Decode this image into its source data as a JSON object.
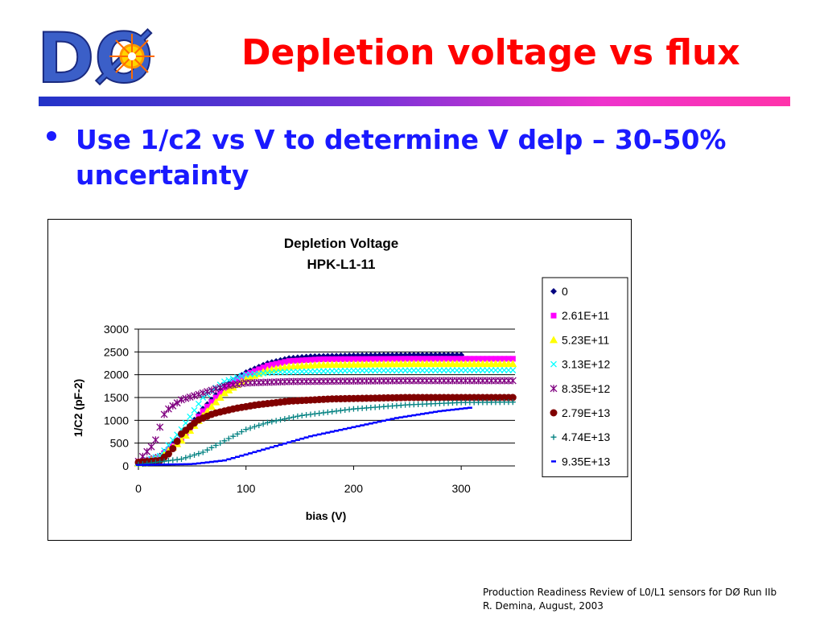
{
  "slide": {
    "title": "Depletion voltage vs flux",
    "bullet": "Use 1/c2 vs V to determine V delp – 30-50% uncertainty",
    "logo_text": "DØ",
    "footer_line1": "Production Readiness Review of L0/L1 sensors for DØ Run IIb",
    "footer_line2": "R. Demina, August, 2003",
    "accent_colors": {
      "title": "#ff0000",
      "bullet": "#1a1aff"
    }
  },
  "chart_data": {
    "type": "scatter",
    "title": "Depletion Voltage",
    "subtitle": "HPK-L1-11",
    "xlabel": "bias (V)",
    "ylabel": "1/C2 (pF-2)",
    "xlim": [
      0,
      350
    ],
    "ylim": [
      0,
      3000
    ],
    "xticks": [
      0,
      100,
      200,
      300
    ],
    "yticks": [
      0,
      500,
      1000,
      1500,
      2000,
      2500,
      3000
    ],
    "grid": "horizontal",
    "legend_position": "right",
    "series": [
      {
        "name": "0",
        "color": "#000080",
        "marker": "diamond",
        "points": [
          [
            0,
            80
          ],
          [
            20,
            220
          ],
          [
            40,
            650
          ],
          [
            60,
            1250
          ],
          [
            80,
            1750
          ],
          [
            100,
            2050
          ],
          [
            120,
            2250
          ],
          [
            140,
            2360
          ],
          [
            160,
            2400
          ],
          [
            200,
            2420
          ],
          [
            250,
            2430
          ],
          [
            300,
            2430
          ]
        ]
      },
      {
        "name": "2.61E+11",
        "color": "#ff00ff",
        "marker": "square",
        "points": [
          [
            0,
            70
          ],
          [
            20,
            200
          ],
          [
            40,
            600
          ],
          [
            60,
            1200
          ],
          [
            80,
            1700
          ],
          [
            100,
            2000
          ],
          [
            120,
            2200
          ],
          [
            140,
            2300
          ],
          [
            170,
            2340
          ],
          [
            250,
            2350
          ],
          [
            350,
            2350
          ]
        ]
      },
      {
        "name": "5.23E+11",
        "color": "#ffff00",
        "marker": "triangle",
        "points": [
          [
            0,
            60
          ],
          [
            20,
            180
          ],
          [
            40,
            560
          ],
          [
            60,
            1100
          ],
          [
            80,
            1600
          ],
          [
            100,
            1900
          ],
          [
            120,
            2100
          ],
          [
            140,
            2180
          ],
          [
            170,
            2220
          ],
          [
            250,
            2240
          ],
          [
            350,
            2240
          ]
        ]
      },
      {
        "name": "3.13E+12",
        "color": "#00ffff",
        "marker": "x",
        "points": [
          [
            0,
            60
          ],
          [
            20,
            220
          ],
          [
            40,
            800
          ],
          [
            60,
            1500
          ],
          [
            80,
            1850
          ],
          [
            100,
            2000
          ],
          [
            130,
            2060
          ],
          [
            200,
            2090
          ],
          [
            350,
            2100
          ]
        ]
      },
      {
        "name": "8.35E+12",
        "color": "#800080",
        "marker": "star",
        "points": [
          [
            0,
            100
          ],
          [
            15,
            500
          ],
          [
            25,
            1200
          ],
          [
            40,
            1450
          ],
          [
            60,
            1600
          ],
          [
            80,
            1750
          ],
          [
            100,
            1820
          ],
          [
            140,
            1850
          ],
          [
            250,
            1870
          ],
          [
            350,
            1870
          ]
        ]
      },
      {
        "name": "2.79E+13",
        "color": "#800000",
        "marker": "circle",
        "points": [
          [
            0,
            80
          ],
          [
            20,
            120
          ],
          [
            30,
            300
          ],
          [
            40,
            700
          ],
          [
            55,
            1000
          ],
          [
            70,
            1150
          ],
          [
            90,
            1260
          ],
          [
            110,
            1340
          ],
          [
            140,
            1420
          ],
          [
            180,
            1470
          ],
          [
            250,
            1500
          ],
          [
            350,
            1500
          ]
        ]
      },
      {
        "name": "4.74E+13",
        "color": "#008080",
        "marker": "plus",
        "points": [
          [
            0,
            30
          ],
          [
            40,
            150
          ],
          [
            60,
            300
          ],
          [
            80,
            550
          ],
          [
            100,
            800
          ],
          [
            120,
            950
          ],
          [
            150,
            1100
          ],
          [
            200,
            1250
          ],
          [
            250,
            1340
          ],
          [
            300,
            1390
          ],
          [
            350,
            1400
          ]
        ]
      },
      {
        "name": "9.35E+13",
        "color": "#0000ff",
        "marker": "dash",
        "points": [
          [
            0,
            20
          ],
          [
            50,
            40
          ],
          [
            80,
            120
          ],
          [
            100,
            250
          ],
          [
            130,
            450
          ],
          [
            160,
            650
          ],
          [
            200,
            850
          ],
          [
            240,
            1050
          ],
          [
            280,
            1200
          ],
          [
            310,
            1280
          ]
        ]
      }
    ]
  }
}
